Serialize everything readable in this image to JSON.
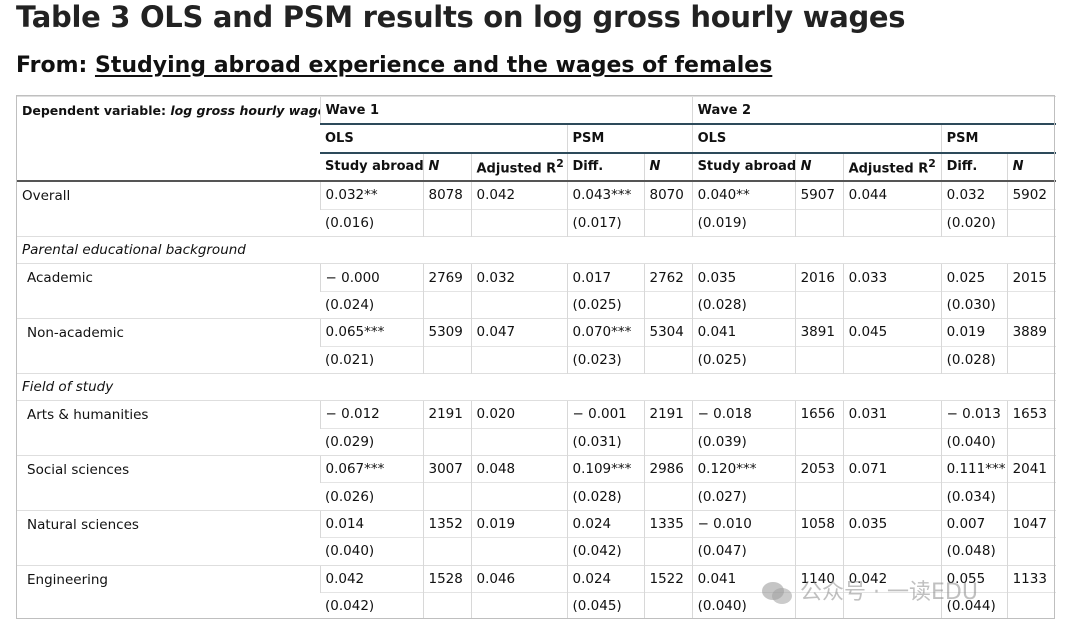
{
  "title": "Table 3 OLS and PSM results on log gross hourly wages",
  "from_label": "From: ",
  "from_link": "Studying abroad experience and the wages of females",
  "table": {
    "dep_label": "Dependent variable: ",
    "dep_value": "log gross hourly wages",
    "wave1": "Wave 1",
    "wave2": "Wave 2",
    "ols": "OLS",
    "psm": "PSM",
    "col_study": "Study abroad",
    "col_n": "N",
    "col_adj": "Adjusted R",
    "col_adj_sup": "2",
    "col_diff": "Diff.",
    "sections": {
      "parental": "Parental educational background",
      "field": "Field of study"
    },
    "rows": [
      {
        "label": "Overall",
        "v": [
          "0.032**",
          "8078",
          "0.042",
          "0.043***",
          "8070",
          "0.040**",
          "5907",
          "0.044",
          "0.032",
          "5902"
        ],
        "se": [
          "(0.016)",
          "(0.017)",
          "(0.019)",
          "(0.020)"
        ]
      },
      {
        "label": "Academic",
        "v": [
          "− 0.000",
          "2769",
          "0.032",
          "0.017",
          "2762",
          "0.035",
          "2016",
          "0.033",
          "0.025",
          "2015"
        ],
        "se": [
          "(0.024)",
          "(0.025)",
          "(0.028)",
          "(0.030)"
        ]
      },
      {
        "label": "Non-academic",
        "v": [
          "0.065***",
          "5309",
          "0.047",
          "0.070***",
          "5304",
          "0.041",
          "3891",
          "0.045",
          "0.019",
          "3889"
        ],
        "se": [
          "(0.021)",
          "(0.023)",
          "(0.025)",
          "(0.028)"
        ]
      },
      {
        "label": "Arts & humanities",
        "v": [
          "− 0.012",
          "2191",
          "0.020",
          "− 0.001",
          "2191",
          "− 0.018",
          "1656",
          "0.031",
          "− 0.013",
          "1653"
        ],
        "se": [
          "(0.029)",
          "(0.031)",
          "(0.039)",
          "(0.040)"
        ]
      },
      {
        "label": "Social sciences",
        "v": [
          "0.067***",
          "3007",
          "0.048",
          "0.109***",
          "2986",
          "0.120***",
          "2053",
          "0.071",
          "0.111***",
          "2041"
        ],
        "se": [
          "(0.026)",
          "(0.028)",
          "(0.027)",
          "(0.034)"
        ]
      },
      {
        "label": "Natural sciences",
        "v": [
          "0.014",
          "1352",
          "0.019",
          "0.024",
          "1335",
          "− 0.010",
          "1058",
          "0.035",
          "0.007",
          "1047"
        ],
        "se": [
          "(0.040)",
          "(0.042)",
          "(0.047)",
          "(0.048)"
        ]
      },
      {
        "label": "Engineering",
        "v": [
          "0.042",
          "1528",
          "0.046",
          "0.024",
          "1522",
          "0.041",
          "1140",
          "0.042",
          "0.055",
          "1133"
        ],
        "se": [
          "(0.042)",
          "(0.045)",
          "(0.040)",
          "(0.044)"
        ]
      }
    ]
  },
  "watermark": "公众号 · 一读EDU"
}
